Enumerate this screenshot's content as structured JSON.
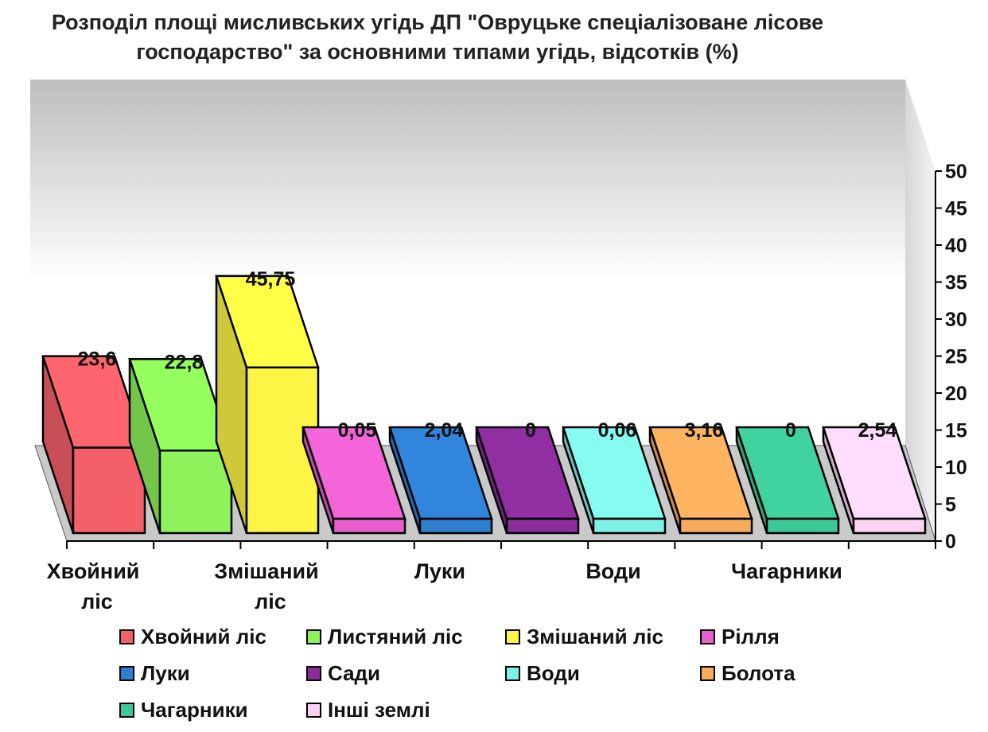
{
  "chart_data": {
    "type": "bar",
    "title_lines": [
      "Розподіл площі мисливських угідь ДП \"Овруцьке спеціалізоване лісове",
      "господарство\" за основними типами угідь,  відсотків  (%)"
    ],
    "categories": [
      "Хвойний ліс",
      "Листяний ліс",
      "Змішаний ліс",
      "Рілля",
      "Луки",
      "Сади",
      "Води",
      "Болота",
      "Чагарники",
      "Інші землі"
    ],
    "values": [
      23.6,
      22.8,
      45.75,
      0.05,
      2.04,
      0,
      0.06,
      3.16,
      0,
      2.54
    ],
    "value_labels": [
      "23,6",
      "22,8",
      "45,75",
      "0,05",
      "2,04",
      "0",
      "0,06",
      "3,16",
      "0",
      "2,54"
    ],
    "x_tick_labels": [
      {
        "index": 0,
        "lines": [
          "Хвойний",
          "ліс"
        ]
      },
      {
        "index": 2,
        "lines": [
          "Змішаний",
          "ліс"
        ]
      },
      {
        "index": 4,
        "lines": [
          "Луки"
        ]
      },
      {
        "index": 6,
        "lines": [
          "Води"
        ]
      },
      {
        "index": 8,
        "lines": [
          "Чагарники"
        ]
      }
    ],
    "colors": [
      "#f4606a",
      "#8ef25a",
      "#fcf545",
      "#e860d0",
      "#2f7fd0",
      "#8a2c9a",
      "#7ff0e4",
      "#f7ab5c",
      "#3dc897",
      "#fcd2f2"
    ],
    "ylim": [
      0,
      50
    ],
    "yticks": [
      "0",
      "5",
      "10",
      "15",
      "20",
      "25",
      "30",
      "35",
      "40",
      "45",
      "50"
    ],
    "y_axis_side": "right",
    "grid": false,
    "legend_position": "bottom"
  }
}
